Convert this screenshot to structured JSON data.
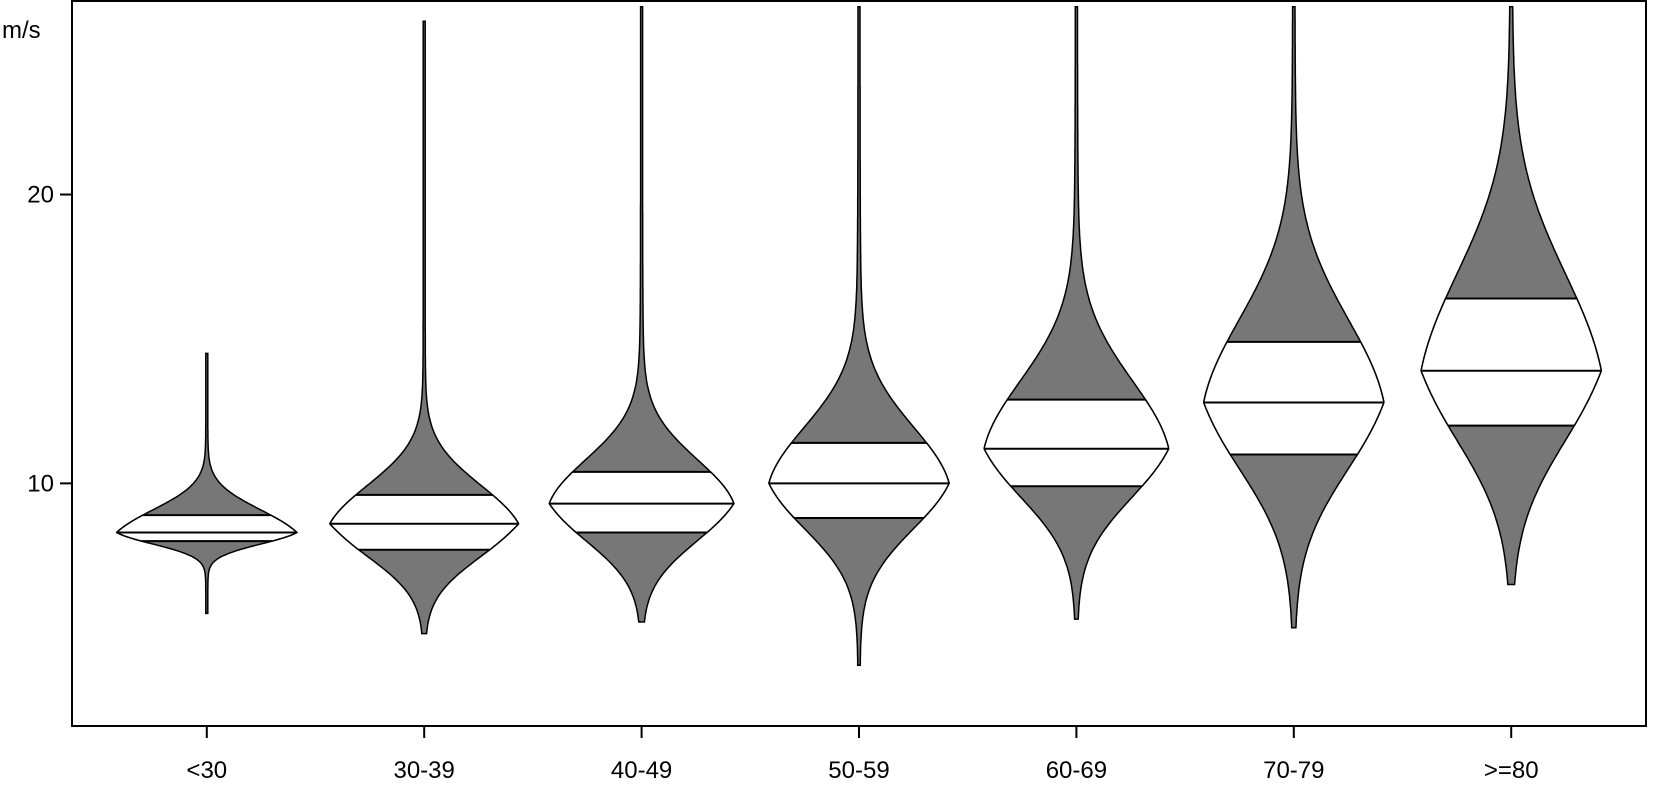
{
  "chart_data": {
    "type": "violin",
    "ylabel": "m/s",
    "ylim": [
      1.6,
      26.7
    ],
    "yticks": [
      10,
      20
    ],
    "ytick_labels": [
      "10",
      "20"
    ],
    "grid": false,
    "legend": "none",
    "categories": [
      "<30",
      "30-39",
      "40-49",
      "50-59",
      "60-69",
      "70-79",
      ">=80"
    ],
    "series": [
      {
        "min": 5.5,
        "q05": 7.3,
        "q25": 8.0,
        "median": 8.3,
        "q75": 8.9,
        "q95": 10.0,
        "max": 14.5,
        "half_width": 0.41
      },
      {
        "min": 4.8,
        "q05": 6.6,
        "q25": 7.7,
        "median": 8.6,
        "q75": 9.6,
        "q95": 12.0,
        "max": 26.0,
        "half_width": 0.43
      },
      {
        "min": 5.2,
        "q05": 6.5,
        "q25": 8.3,
        "median": 9.3,
        "q75": 10.4,
        "q95": 14.5,
        "max": 26.5,
        "half_width": 0.42
      },
      {
        "min": 3.7,
        "q05": 6.2,
        "q25": 8.8,
        "median": 10.0,
        "q75": 11.4,
        "q95": 17.0,
        "max": 26.5,
        "half_width": 0.41
      },
      {
        "min": 5.3,
        "q05": 7.5,
        "q25": 9.9,
        "median": 11.2,
        "q75": 12.9,
        "q95": 19.5,
        "max": 26.5,
        "half_width": 0.42
      },
      {
        "min": 5.0,
        "q05": 8.0,
        "q25": 11.0,
        "median": 12.8,
        "q75": 14.9,
        "q95": 22.0,
        "max": 26.5,
        "half_width": 0.41
      },
      {
        "min": 6.5,
        "q05": 9.2,
        "q25": 12.0,
        "median": 13.9,
        "q75": 16.4,
        "q95": 23.0,
        "max": 26.5,
        "half_width": 0.41
      }
    ],
    "colors": {
      "outer": "#777777",
      "inner": "#ffffff",
      "stroke": "#000000"
    }
  }
}
